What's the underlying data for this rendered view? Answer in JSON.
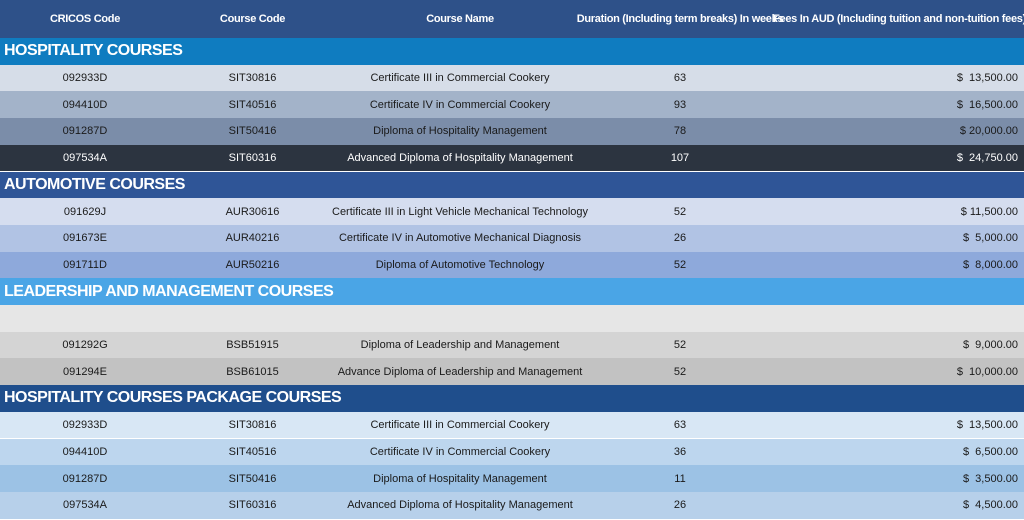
{
  "header": {
    "color": "#2e5189",
    "columns": [
      "CRICOS Code",
      "Course Code",
      "Course Name",
      "Duration (Including term breaks) In weeks",
      "Fees In AUD (Including tuition and non-tuition fees)"
    ]
  },
  "sections": [
    {
      "title": "HOSPITALITY COURSES",
      "color": "#0f7cc0",
      "row_colors": [
        "#d6dde8",
        "#a3b3c9",
        "#7b8da9",
        "#2c3440"
      ],
      "rows": [
        [
          "092933D",
          "SIT30816",
          "Certificate III in Commercial Cookery",
          63,
          "$  13,500.00"
        ],
        [
          "094410D",
          "SIT40516",
          "Certificate IV in Commercial Cookery",
          93,
          "$  16,500.00"
        ],
        [
          "091287D",
          "SIT50416",
          "Diploma of Hospitality Management",
          78,
          "$ 20,000.00"
        ],
        [
          "097534A",
          "SIT60316",
          "Advanced Diploma of Hospitality Management",
          107,
          "$  24,750.00"
        ]
      ]
    },
    {
      "title": "AUTOMOTIVE COURSES",
      "color": "#2f5597",
      "row_colors": [
        "#d5ddef",
        "#b1c3e4",
        "#8ea9db"
      ],
      "rows": [
        [
          "091629J",
          "AUR30616",
          "Certificate III in Light Vehicle Mechanical Technology",
          52,
          "$ 11,500.00"
        ],
        [
          "091673E",
          "AUR40216",
          "Certificate IV in Automotive Mechanical Diagnosis",
          26,
          "$  5,000.00"
        ],
        [
          "091711D",
          "AUR50216",
          "Diploma of Automotive Technology",
          52,
          "$  8,000.00"
        ]
      ]
    },
    {
      "title": "LEADERSHIP AND MANAGEMENT COURSES",
      "color": "#4aa5e6",
      "row_colors": [
        "#e6e6e6",
        "#d4d4d4",
        "#c2c2c2"
      ],
      "rows": [
        null,
        [
          "091292G",
          "BSB51915",
          "Diploma of Leadership and Management",
          52,
          "$  9,000.00"
        ],
        [
          "091294E",
          "BSB61015",
          "Advance Diploma of Leadership and Management",
          52,
          "$  10,000.00"
        ]
      ]
    },
    {
      "title": "HOSPITALITY COURSES PACKAGE COURSES",
      "color": "#1f4e8c",
      "row_colors": [
        "#d8e7f5",
        "#bdd6ee",
        "#9cc2e5",
        "#b7d0ea"
      ],
      "rows": [
        [
          "092933D",
          "SIT30816",
          "Certificate III in Commercial Cookery",
          63,
          "$  13,500.00"
        ],
        [
          "094410D",
          "SIT40516",
          "Certificate IV in Commercial Cookery",
          36,
          "$  6,500.00"
        ],
        [
          "091287D",
          "SIT50416",
          "Diploma of Hospitality Management",
          11,
          "$  3,500.00"
        ],
        [
          "097534A",
          "SIT60316",
          "Advanced Diploma of Hospitality Management",
          26,
          "$  4,500.00"
        ]
      ]
    }
  ]
}
